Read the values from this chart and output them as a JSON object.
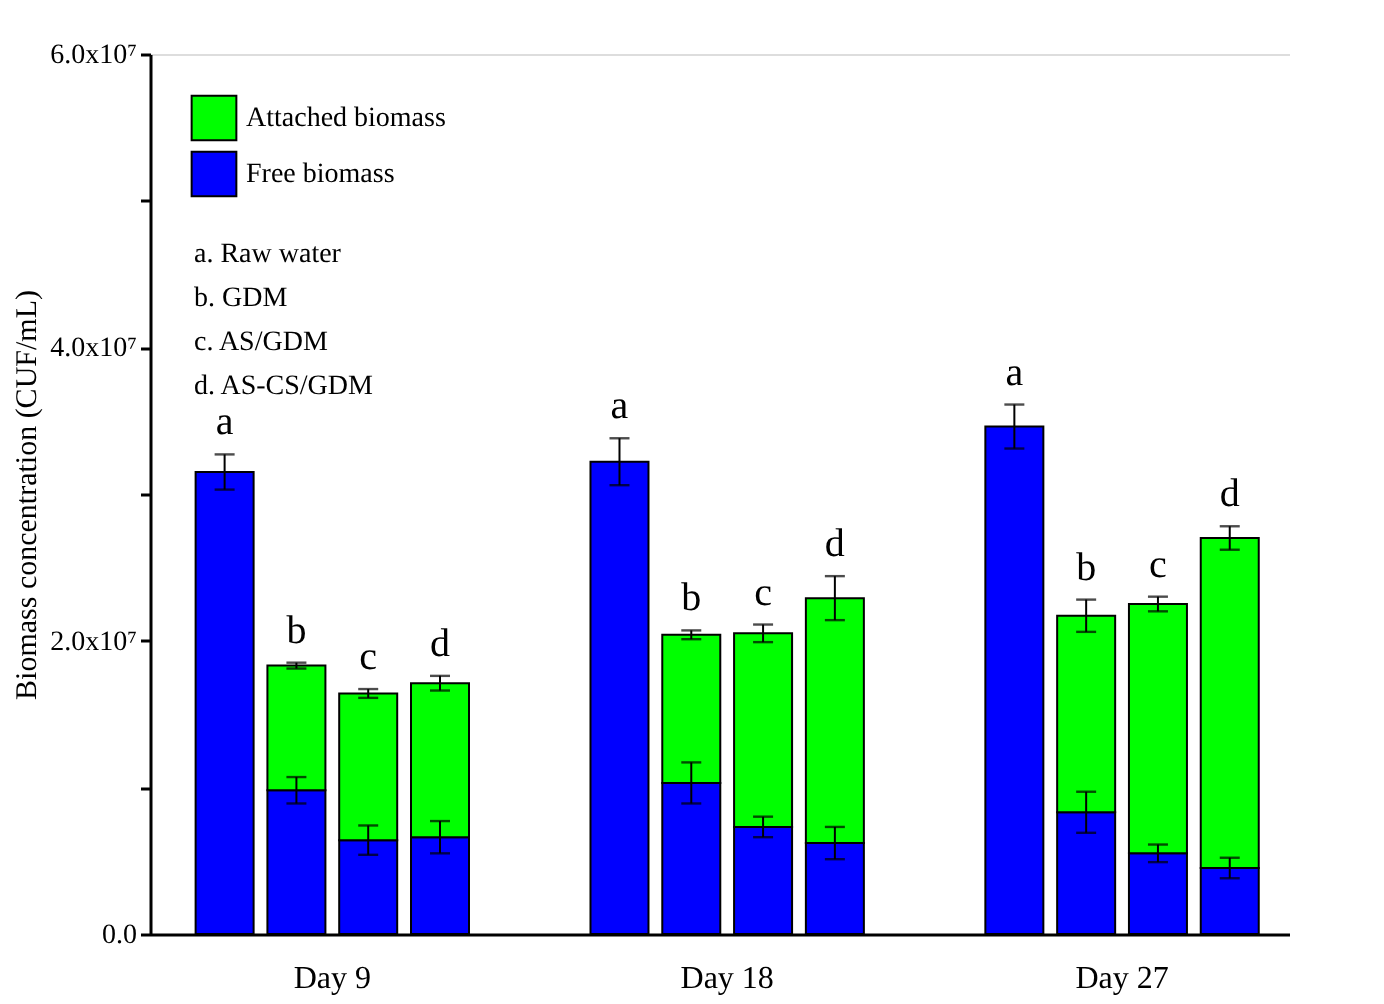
{
  "chart_data": {
    "type": "bar",
    "stacked": true,
    "ylabel": "Biomass concentration (CUF/mL)",
    "categories": [
      null,
      null,
      null,
      null,
      null,
      null,
      null,
      null,
      null,
      null,
      null,
      null
    ],
    "series": [
      {
        "name": "Free biomass",
        "color": "#0000ff",
        "values": [
          31500000,
          9800000,
          6400000,
          6600000,
          32200000,
          10300000,
          7300000,
          6200000,
          34600000,
          8300000,
          5500000,
          4500000
        ],
        "errors": [
          1200000,
          900000,
          1000000,
          1100000,
          1600000,
          1400000,
          700000,
          1100000,
          1500000,
          1400000,
          600000,
          700000
        ],
        "value_labels": [
          "a",
          null,
          null,
          null,
          "a",
          null,
          null,
          null,
          "a",
          null,
          null,
          null
        ]
      },
      {
        "name": "Attached biomass",
        "color": "#00ff00",
        "values": [
          null,
          8500000,
          10000000,
          10500000,
          null,
          10100000,
          13200000,
          16700000,
          null,
          13400000,
          17000000,
          22500000
        ],
        "errors": [
          null,
          200000,
          300000,
          500000,
          null,
          300000,
          600000,
          1500000,
          null,
          1100000,
          500000,
          800000
        ],
        "value_labels": [
          null,
          "b",
          "c",
          "d",
          null,
          "b",
          "c",
          "d",
          null,
          "b",
          "c",
          "d"
        ]
      }
    ],
    "ylim": [
      0,
      60000000
    ],
    "yticks": [
      {
        "value": 0,
        "label": "0.0"
      },
      {
        "value": 10000000,
        "label": null
      },
      {
        "value": 20000000,
        "label": "2.0x10⁷"
      },
      {
        "value": 30000000,
        "label": null
      },
      {
        "value": 40000000,
        "label": "4.0x10⁷"
      },
      {
        "value": 50000000,
        "label": null
      },
      {
        "value": 60000000,
        "label": "6.0x10⁷"
      }
    ],
    "legend": "top left",
    "annotations": [
      "a. Raw water",
      "b. GDM",
      "c. AS/GDM",
      "d. AS-CS/GDM",
      "Day 9",
      "Day 18",
      "Day 27"
    ]
  }
}
